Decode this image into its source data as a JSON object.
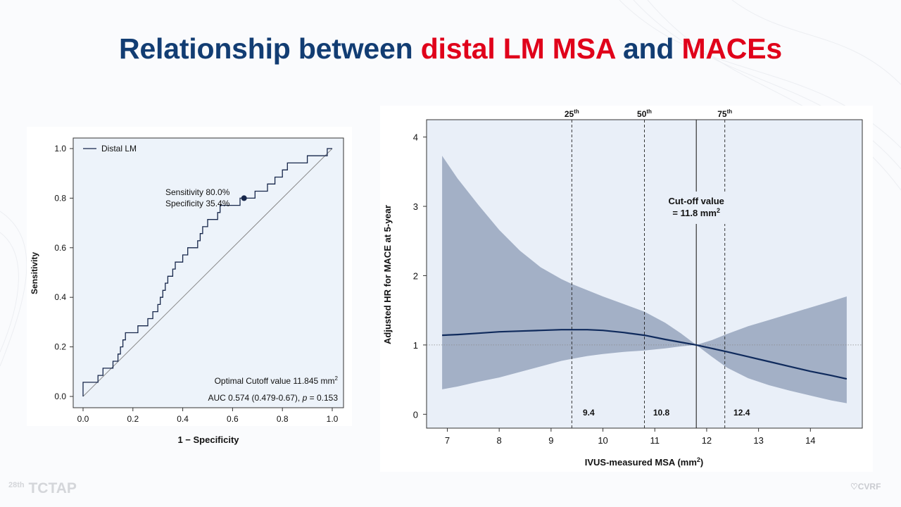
{
  "slide": {
    "title_part1": "Relationship between ",
    "title_part2": "distal LM MSA",
    "title_part3": " and ",
    "title_part4": "MACEs",
    "footer_left_sup": "28th",
    "footer_left": "TCTAP",
    "footer_right": "CVRF",
    "colors": {
      "title_blue": "#123d73",
      "title_red": "#e0001a"
    }
  },
  "chart_data": [
    {
      "type": "line",
      "chart": "roc",
      "xlabel": "1 − Specificity",
      "ylabel": "Sensitivity",
      "xlim": [
        0,
        1
      ],
      "ylim": [
        0,
        1
      ],
      "x_ticks": [
        "0.0",
        "0.2",
        "0.4",
        "0.6",
        "0.8",
        "1.0"
      ],
      "y_ticks": [
        "0.0",
        "0.2",
        "0.4",
        "0.6",
        "0.8",
        "1.0"
      ],
      "legend": "Distal LM",
      "legend_position": "top-left",
      "series": [
        {
          "name": "Distal LM",
          "x": [
            0.0,
            0.0,
            0.02,
            0.02,
            0.06,
            0.06,
            0.08,
            0.08,
            0.12,
            0.12,
            0.14,
            0.14,
            0.15,
            0.15,
            0.16,
            0.16,
            0.17,
            0.17,
            0.21,
            0.21,
            0.22,
            0.22,
            0.26,
            0.26,
            0.27,
            0.27,
            0.28,
            0.28,
            0.29,
            0.29,
            0.3,
            0.3,
            0.31,
            0.31,
            0.32,
            0.32,
            0.33,
            0.33,
            0.34,
            0.34,
            0.36,
            0.36,
            0.37,
            0.37,
            0.38,
            0.38,
            0.4,
            0.4,
            0.42,
            0.42,
            0.44,
            0.44,
            0.46,
            0.46,
            0.47,
            0.47,
            0.48,
            0.48,
            0.5,
            0.5,
            0.52,
            0.52,
            0.54,
            0.54,
            0.55,
            0.55,
            0.56,
            0.56,
            0.57,
            0.57,
            0.59,
            0.59,
            0.62,
            0.62,
            0.63,
            0.63,
            0.64,
            0.64,
            0.65,
            0.65,
            0.69,
            0.69,
            0.71,
            0.71,
            0.74,
            0.74,
            0.77,
            0.77,
            0.8,
            0.8,
            0.82,
            0.82,
            0.87,
            0.87,
            0.9,
            0.9,
            0.96,
            0.96,
            0.98,
            0.98,
            1.0
          ],
          "y": [
            0.0,
            0.057,
            0.057,
            0.057,
            0.057,
            0.085,
            0.085,
            0.114,
            0.114,
            0.142,
            0.142,
            0.171,
            0.171,
            0.2,
            0.2,
            0.228,
            0.228,
            0.257,
            0.257,
            0.257,
            0.257,
            0.285,
            0.285,
            0.314,
            0.314,
            0.314,
            0.314,
            0.342,
            0.342,
            0.342,
            0.342,
            0.371,
            0.371,
            0.4,
            0.4,
            0.428,
            0.428,
            0.457,
            0.457,
            0.485,
            0.485,
            0.514,
            0.514,
            0.542,
            0.542,
            0.542,
            0.542,
            0.571,
            0.571,
            0.6,
            0.6,
            0.6,
            0.6,
            0.628,
            0.628,
            0.657,
            0.657,
            0.685,
            0.685,
            0.714,
            0.714,
            0.714,
            0.714,
            0.742,
            0.742,
            0.771,
            0.771,
            0.771,
            0.771,
            0.771,
            0.771,
            0.771,
            0.771,
            0.771,
            0.771,
            0.8,
            0.8,
            0.8,
            0.8,
            0.8,
            0.8,
            0.828,
            0.828,
            0.828,
            0.828,
            0.857,
            0.857,
            0.885,
            0.885,
            0.914,
            0.914,
            0.942,
            0.942,
            0.942,
            0.942,
            0.971,
            0.971,
            0.971,
            0.971,
            1.0,
            1.0
          ]
        },
        {
          "name": "Reference",
          "x": [
            0,
            1
          ],
          "y": [
            0,
            1
          ]
        }
      ],
      "optimal_point": {
        "x": 0.646,
        "y": 0.8
      },
      "annotations": {
        "point_line1": "Sensitivity 80.0%",
        "point_line2": "Specificity 35.4%",
        "cutoff": "Optimal Cutoff value 11.845 mm",
        "cutoff_sup": "2",
        "auc_prefix": "AUC 0.574 (0.479-0.67), ",
        "auc_p": "p",
        "auc_suffix": " = 0.153"
      }
    },
    {
      "type": "line",
      "chart": "spline_hr",
      "xlabel": "IVUS-measured MSA (mm",
      "xlabel_sup": "2",
      "xlabel_tail": ")",
      "ylabel": "Adjusted HR for MACE at 5-year",
      "xlim": [
        6.6,
        15.0
      ],
      "ylim": [
        -0.2,
        4.25
      ],
      "x_ticks": [
        "7",
        "8",
        "9",
        "10",
        "11",
        "12",
        "13",
        "14"
      ],
      "y_ticks": [
        "0",
        "1",
        "2",
        "3",
        "4"
      ],
      "reference_hr": 1,
      "series": [
        {
          "name": "Adjusted HR",
          "x": [
            6.9,
            7.2,
            7.6,
            8.0,
            8.4,
            8.8,
            9.2,
            9.4,
            9.7,
            10.0,
            10.4,
            10.8,
            11.2,
            11.5,
            11.8,
            12.1,
            12.4,
            12.8,
            13.2,
            13.6,
            14.0,
            14.4,
            14.7
          ],
          "y": [
            1.14,
            1.15,
            1.17,
            1.19,
            1.2,
            1.21,
            1.22,
            1.22,
            1.22,
            1.21,
            1.18,
            1.14,
            1.08,
            1.04,
            1.0,
            0.95,
            0.9,
            0.83,
            0.76,
            0.69,
            0.62,
            0.56,
            0.51
          ]
        },
        {
          "name": "95% CI upper",
          "x": [
            6.9,
            7.2,
            7.6,
            8.0,
            8.4,
            8.8,
            9.2,
            9.4,
            9.7,
            10.0,
            10.4,
            10.8,
            11.2,
            11.5,
            11.8,
            12.1,
            12.4,
            12.8,
            13.2,
            13.6,
            14.0,
            14.4,
            14.7
          ],
          "y": [
            3.73,
            3.4,
            3.02,
            2.66,
            2.36,
            2.12,
            1.95,
            1.88,
            1.79,
            1.7,
            1.59,
            1.48,
            1.32,
            1.17,
            1.0,
            1.07,
            1.16,
            1.27,
            1.36,
            1.45,
            1.54,
            1.63,
            1.7
          ]
        },
        {
          "name": "95% CI lower",
          "x": [
            6.9,
            7.2,
            7.6,
            8.0,
            8.4,
            8.8,
            9.2,
            9.4,
            9.7,
            10.0,
            10.4,
            10.8,
            11.2,
            11.5,
            11.8,
            12.1,
            12.4,
            12.8,
            13.2,
            13.6,
            14.0,
            14.4,
            14.7
          ],
          "y": [
            0.36,
            0.4,
            0.47,
            0.53,
            0.61,
            0.69,
            0.77,
            0.8,
            0.84,
            0.87,
            0.9,
            0.92,
            0.95,
            0.98,
            1.0,
            0.83,
            0.67,
            0.52,
            0.42,
            0.34,
            0.27,
            0.2,
            0.16
          ]
        }
      ],
      "cutoff": {
        "x": 11.8,
        "label_line1": "Cut-off value",
        "label_line2": "= 11.8 mm",
        "label_sup": "2"
      },
      "percentiles": [
        {
          "x": 9.4,
          "label": "25",
          "sup": "th",
          "value": "9.4"
        },
        {
          "x": 10.8,
          "label": "50",
          "sup": "th",
          "value": "10.8"
        },
        {
          "x": 12.35,
          "label": "75",
          "sup": "th",
          "value": "12.4"
        }
      ],
      "colors": {
        "line": "#0f2a5c",
        "band": "#a3b0c6",
        "panel": "#e9eff8"
      }
    }
  ]
}
